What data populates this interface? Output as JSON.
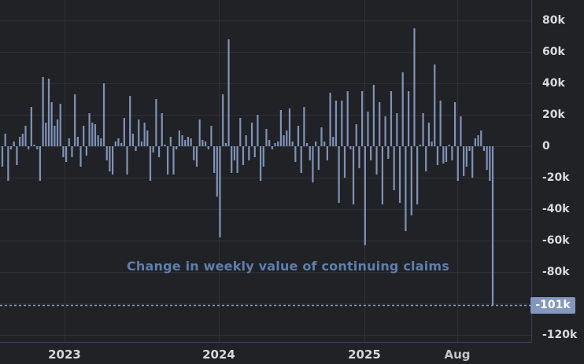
{
  "chart_data": {
    "type": "bar",
    "title": "Change in weekly value of continuing claims",
    "unit": "thousands (k)",
    "frequency": "weekly",
    "values": [
      -13,
      8,
      -22,
      -2,
      3,
      -12,
      6,
      8,
      13,
      -2,
      25,
      1,
      -2,
      -22,
      44,
      15,
      43,
      28,
      13,
      17,
      27,
      -7,
      -10,
      5,
      -7,
      33,
      6,
      -13,
      13,
      -6,
      21,
      15,
      14,
      7,
      5,
      40,
      -9,
      -16,
      -18,
      3,
      5,
      2,
      18,
      -18,
      32,
      8,
      -3,
      17,
      3,
      15,
      10,
      -22,
      -4,
      30,
      -7,
      21,
      1,
      -18,
      6,
      -18,
      -2,
      10,
      7,
      4,
      6,
      5,
      -9,
      -13,
      17,
      4,
      3,
      -2,
      13,
      -17,
      -32,
      -58,
      33,
      2,
      68,
      -17,
      -9,
      -17,
      18,
      -12,
      7,
      -9,
      15,
      -7,
      20,
      -22,
      -13,
      11,
      4,
      -2,
      2,
      3,
      23,
      7,
      10,
      24,
      3,
      -10,
      13,
      -17,
      25,
      2,
      -9,
      -23,
      3,
      -15,
      12,
      3,
      -9,
      34,
      6,
      29,
      -36,
      29,
      -20,
      35,
      -2,
      -37,
      14,
      -14,
      35,
      -63,
      22,
      -9,
      39,
      -18,
      28,
      -37,
      19,
      -8,
      35,
      -28,
      21,
      -36,
      47,
      -54,
      35,
      -44,
      75,
      -37,
      1,
      21,
      -16,
      15,
      3,
      52,
      -12,
      29,
      -11,
      -10,
      1,
      -9,
      28,
      -22,
      19,
      -19,
      -13,
      -3,
      -20,
      5,
      7,
      10,
      -3,
      -15,
      -22,
      -101
    ],
    "ylim": [
      -125,
      93
    ],
    "y_gridlines": [
      80,
      60,
      40,
      20,
      0,
      -20,
      -40,
      -60,
      -80,
      -100,
      -120
    ],
    "y_ticks": [
      {
        "value": 80,
        "label": "80k"
      },
      {
        "value": 60,
        "label": "60k"
      },
      {
        "value": 40,
        "label": "40k"
      },
      {
        "value": 20,
        "label": "20k"
      },
      {
        "value": 0,
        "label": "0"
      },
      {
        "value": -20,
        "label": "-20k"
      },
      {
        "value": -40,
        "label": "-40k"
      },
      {
        "value": -60,
        "label": "-60k"
      },
      {
        "value": -80,
        "label": "-80k"
      },
      {
        "value": -120,
        "label": "-120k"
      }
    ],
    "x_ticks": [
      {
        "label": "2023",
        "x": 82,
        "minor": false
      },
      {
        "label": "2024",
        "x": 278,
        "minor": false
      },
      {
        "label": "2025",
        "x": 463,
        "minor": false
      },
      {
        "label": "Aug",
        "x": 581,
        "minor": true
      }
    ],
    "last_value": -101,
    "last_value_label": "-101k",
    "grid": true,
    "legend": "none",
    "colors": {
      "background": "#212225",
      "bar": "#7f93ba",
      "grid": "#2f3136",
      "dotted_line": "#8a9cc2",
      "axis_separator": "#3a3f63",
      "tick_text": "#d9dadc",
      "title_text": "#5d7fae",
      "badge_background": "#8497bd",
      "badge_text": "#ffffff"
    }
  }
}
